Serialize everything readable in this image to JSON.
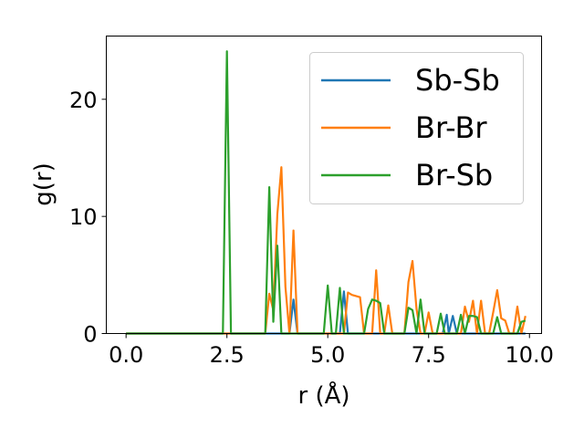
{
  "chart_data": {
    "type": "line",
    "title": "",
    "xlabel": "r (Å)",
    "ylabel": "g(r)",
    "xlim": [
      -0.49,
      10.3
    ],
    "ylim": [
      0,
      25.4
    ],
    "xticks": [
      0.0,
      2.5,
      5.0,
      7.5,
      10.0
    ],
    "xtick_labels": [
      "0.0",
      "2.5",
      "5.0",
      "7.5",
      "10.0"
    ],
    "yticks": [
      0,
      10,
      20
    ],
    "ytick_labels": [
      "0",
      "10",
      "20"
    ],
    "grid": false,
    "legend_position": "top-right",
    "series": [
      {
        "name": "Sb-Sb",
        "color": "#1f77b4",
        "x": [
          0.0,
          4.05,
          4.15,
          4.25,
          5.3,
          5.4,
          5.5,
          7.85,
          7.95,
          8.0,
          8.1,
          8.2,
          9.9
        ],
        "y": [
          0,
          0,
          2.9,
          0,
          0,
          3.6,
          0,
          0,
          1.6,
          0,
          1.5,
          0,
          0
        ]
      },
      {
        "name": "Br-Br",
        "color": "#ff7f0e",
        "x": [
          0.0,
          3.45,
          3.55,
          3.65,
          3.75,
          3.85,
          3.95,
          4.05,
          4.15,
          4.25,
          5.3,
          5.4,
          5.5,
          5.6,
          5.8,
          5.9,
          6.1,
          6.2,
          6.3,
          6.4,
          6.5,
          6.6,
          6.9,
          7.0,
          7.1,
          7.2,
          7.3,
          7.4,
          7.5,
          7.6,
          8.3,
          8.4,
          8.5,
          8.6,
          8.7,
          8.8,
          8.9,
          9.0,
          9.1,
          9.2,
          9.3,
          9.4,
          9.5,
          9.6,
          9.7,
          9.8,
          9.9
        ],
        "y": [
          0,
          0,
          3.4,
          2.0,
          10.2,
          14.2,
          4.0,
          0,
          8.8,
          0,
          0,
          0,
          3.5,
          3.3,
          3.1,
          0,
          0,
          5.4,
          0,
          0,
          2.4,
          0,
          0,
          4.4,
          6.2,
          2.1,
          0,
          0,
          1.8,
          0,
          0,
          2.3,
          1.0,
          2.8,
          0,
          2.8,
          0,
          0,
          1.8,
          3.7,
          1.3,
          1.1,
          0,
          0,
          2.3,
          0,
          1.5
        ]
      },
      {
        "name": "Br-Sb",
        "color": "#2ca02c",
        "x": [
          0.0,
          2.4,
          2.5,
          2.6,
          3.45,
          3.55,
          3.65,
          3.75,
          3.85,
          4.9,
          5.0,
          5.1,
          5.2,
          5.3,
          5.4,
          5.5,
          5.6,
          5.7,
          5.8,
          5.9,
          6.0,
          6.1,
          6.2,
          6.3,
          6.4,
          6.5,
          6.6,
          6.9,
          7.0,
          7.1,
          7.2,
          7.3,
          7.4,
          7.5,
          7.6,
          7.7,
          7.8,
          7.9,
          8.0,
          8.1,
          8.2,
          8.3,
          8.4,
          8.5,
          8.6,
          8.7,
          8.8,
          8.9,
          9.0,
          9.1,
          9.2,
          9.3,
          9.4,
          9.5,
          9.6,
          9.7,
          9.8,
          9.9
        ],
        "y": [
          0,
          0,
          24.1,
          0,
          0,
          12.5,
          1.0,
          7.5,
          0,
          0,
          4.1,
          0,
          0,
          3.9,
          0,
          0,
          0,
          0,
          0,
          0,
          2.1,
          2.9,
          2.8,
          2.6,
          0,
          0,
          0,
          0,
          2.2,
          2.0,
          0,
          2.9,
          0,
          0,
          0,
          0,
          1.7,
          0,
          0,
          0,
          0,
          1.6,
          0,
          1.5,
          1.5,
          1.4,
          0,
          0,
          0,
          0,
          1.4,
          0,
          0,
          0,
          0,
          0,
          1.0,
          1.1
        ]
      }
    ]
  }
}
